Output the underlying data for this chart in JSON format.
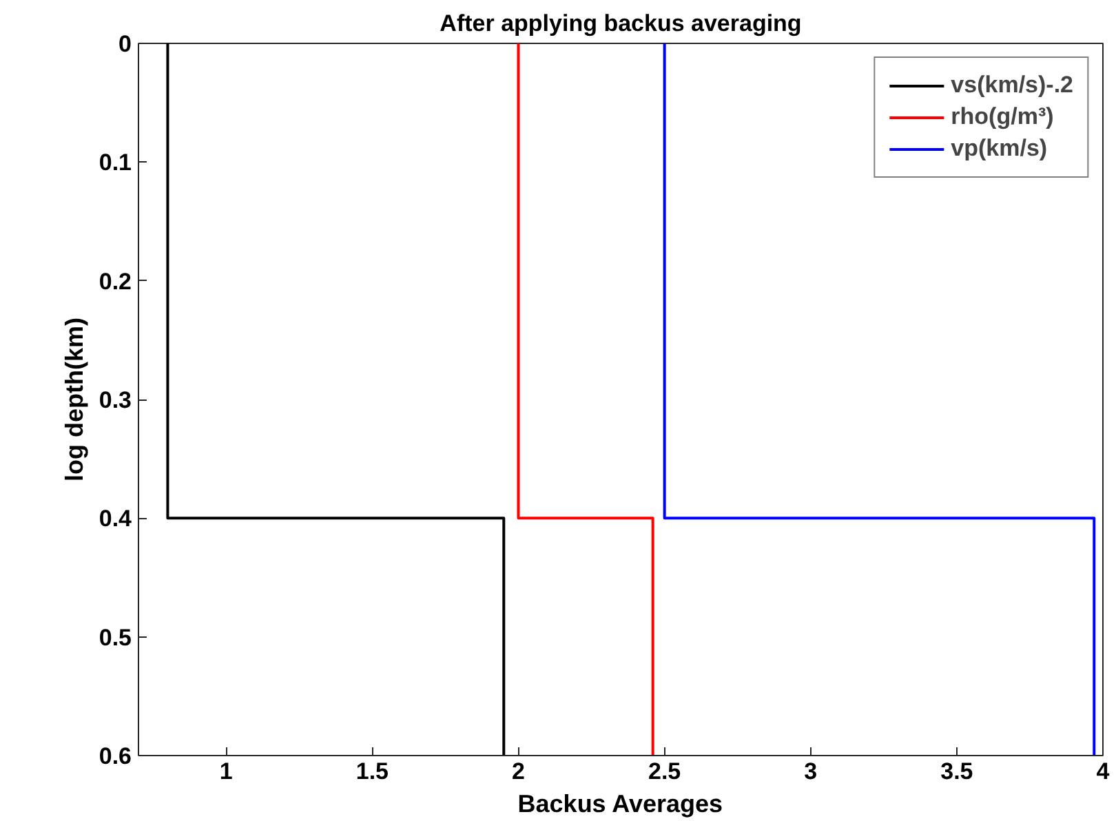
{
  "chart_data": {
    "type": "line",
    "title": "After applying backus averaging",
    "xlabel": "Backus Averages",
    "ylabel": "log depth(km)",
    "series": [
      {
        "name": "vs(km/s)-.2",
        "color": "#000000",
        "x": [
          0.8,
          0.8,
          1.95,
          1.95
        ],
        "values": [
          0,
          0.4,
          0.4,
          0.6
        ]
      },
      {
        "name": "rho(g/m³)",
        "color": "#ff0000",
        "x": [
          2.0,
          2.0,
          2.46,
          2.46
        ],
        "values": [
          0,
          0.4,
          0.4,
          0.6
        ]
      },
      {
        "name": "vp(km/s)",
        "color": "#0000ff",
        "x": [
          2.5,
          2.5,
          3.97,
          3.97
        ],
        "values": [
          0,
          0.4,
          0.4,
          0.6
        ]
      }
    ],
    "xlim": [
      0.7,
      4
    ],
    "xticks": [
      1,
      1.5,
      2,
      2.5,
      3,
      3.5,
      4
    ],
    "ylim": [
      0.6,
      0
    ],
    "yticks": [
      0,
      0.1,
      0.2,
      0.3,
      0.4,
      0.5,
      0.6
    ],
    "grid": false,
    "legend": "top right",
    "marker": "none",
    "line_style": "solid"
  }
}
